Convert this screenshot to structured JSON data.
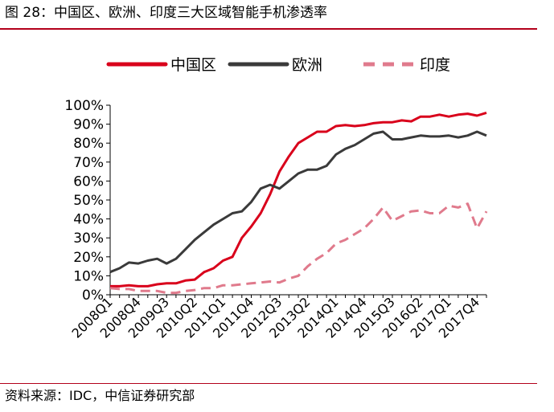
{
  "figure": {
    "title": "图 28：中国区、欧洲、印度三大区域智能手机渗透率",
    "source": "资料来源：IDC，中信证券研究部"
  },
  "chart_data": {
    "type": "line",
    "title": "",
    "xlabel": "",
    "ylabel": "",
    "ylim": [
      0,
      100
    ],
    "yticks": [
      "0%",
      "10%",
      "20%",
      "30%",
      "40%",
      "50%",
      "60%",
      "70%",
      "80%",
      "90%",
      "100%"
    ],
    "x": [
      "2008Q1",
      "2008Q2",
      "2008Q3",
      "2008Q4",
      "2009Q1",
      "2009Q2",
      "2009Q3",
      "2009Q4",
      "2010Q1",
      "2010Q2",
      "2010Q3",
      "2010Q4",
      "2011Q1",
      "2011Q2",
      "2011Q3",
      "2011Q4",
      "2012Q1",
      "2012Q2",
      "2012Q3",
      "2012Q4",
      "2013Q1",
      "2013Q2",
      "2013Q3",
      "2013Q4",
      "2014Q1",
      "2014Q2",
      "2014Q3",
      "2014Q4",
      "2015Q1",
      "2015Q2",
      "2015Q3",
      "2015Q4",
      "2016Q1",
      "2016Q2",
      "2016Q3",
      "2016Q4",
      "2017Q1",
      "2017Q2",
      "2017Q3",
      "2017Q4",
      "2018Q1"
    ],
    "xtick_labels": [
      "2008Q1",
      "2008Q4",
      "2009Q3",
      "2010Q2",
      "2011Q1",
      "2011Q4",
      "2012Q3",
      "2013Q2",
      "2014Q1",
      "2014Q4",
      "2015Q3",
      "2016Q2",
      "2017Q1",
      "2017Q4"
    ],
    "legend_position": "top",
    "series": [
      {
        "name": "中国区",
        "color": "#d9001b",
        "dash": "solid",
        "values": [
          4.5,
          4.5,
          5,
          4.5,
          4.5,
          5.5,
          6,
          6,
          7.5,
          8,
          12,
          14,
          18,
          20,
          30,
          36,
          43,
          53,
          65,
          73,
          80,
          83,
          86,
          86,
          89,
          89.5,
          89,
          89.5,
          90.5,
          91,
          91,
          92,
          91.5,
          94,
          94,
          95,
          94,
          95,
          95.5,
          94.5,
          96
        ]
      },
      {
        "name": "欧洲",
        "color": "#3a3a3a",
        "dash": "solid",
        "values": [
          12,
          14,
          17,
          16.5,
          18,
          19,
          16.5,
          19,
          24,
          29,
          33,
          37,
          40,
          43,
          44,
          49,
          56,
          58,
          56,
          60,
          64,
          66,
          66,
          68,
          74,
          77,
          79,
          82,
          85,
          86,
          82,
          82,
          83,
          84,
          83.5,
          83.5,
          84,
          83,
          84,
          86,
          84
        ]
      },
      {
        "name": "印度",
        "color": "#e07a8c",
        "dash": "dashed",
        "values": [
          3.5,
          3,
          3,
          2,
          2,
          2,
          1,
          1,
          2,
          2.5,
          3.5,
          3.5,
          5,
          5,
          5.5,
          6,
          6.5,
          7,
          6.5,
          8.5,
          10,
          15,
          19,
          22,
          27,
          29,
          32,
          35,
          40,
          46,
          39,
          41.5,
          44,
          44.5,
          43,
          43,
          47,
          46,
          48,
          35,
          44
        ]
      }
    ]
  }
}
